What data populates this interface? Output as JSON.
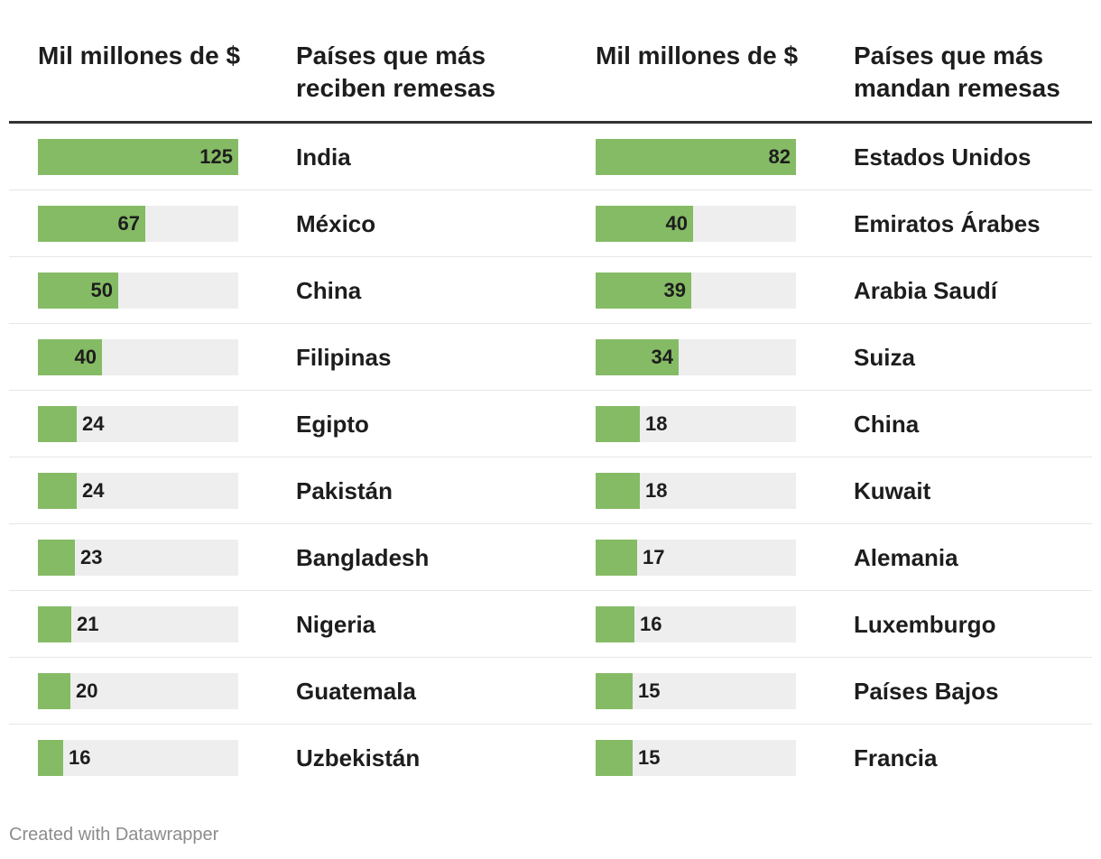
{
  "headers": {
    "value_left": "Mil millones de $",
    "countries_left": "Países que más reciben remesas",
    "value_right": "Mil millones de $",
    "countries_right": "Países que más mandan remesas"
  },
  "chart_data": {
    "type": "bar",
    "title": "",
    "series": [
      {
        "name": "Países que más reciben remesas",
        "categories": [
          "India",
          "México",
          "China",
          "Filipinas",
          "Egipto",
          "Pakistán",
          "Bangladesh",
          "Nigeria",
          "Guatemala",
          "Uzbekistán"
        ],
        "values": [
          125,
          67,
          50,
          40,
          24,
          24,
          23,
          21,
          20,
          16
        ]
      },
      {
        "name": "Países que más mandan remesas",
        "categories": [
          "Estados Unidos",
          "Emiratos Árabes",
          "Arabia Saudí",
          "Suiza",
          "China",
          "Kuwait",
          "Alemania",
          "Luxemburgo",
          "Países Bajos",
          "Francia"
        ],
        "values": [
          82,
          40,
          39,
          34,
          18,
          18,
          17,
          16,
          15,
          15
        ]
      }
    ],
    "unit": "Mil millones de $",
    "grid": false,
    "legend": "none"
  },
  "colors": {
    "bar": "#85bb65",
    "track": "#eeeeee",
    "text": "#1d1d1d",
    "credit": "#8c8c8c"
  },
  "credit": "Created with Datawrapper"
}
